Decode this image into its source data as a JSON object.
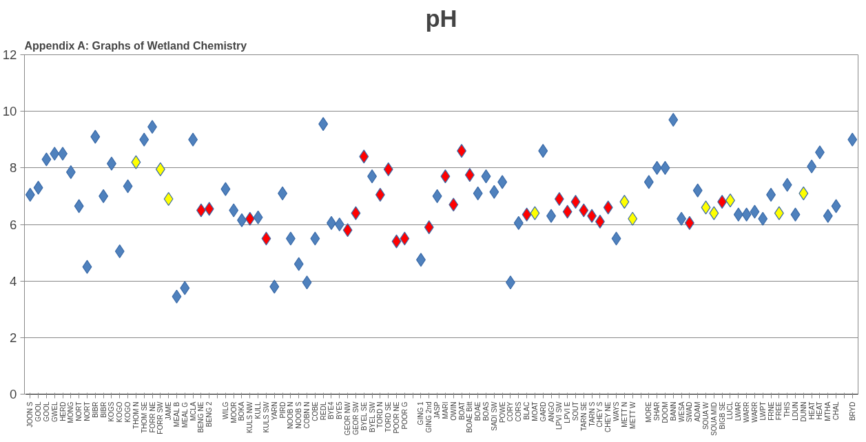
{
  "chart_data": {
    "type": "scatter",
    "title": "pH",
    "annotations": [
      "Appendix A: Graphs of Wetland Chemistry"
    ],
    "categories": [
      "JOON S",
      "GOOL",
      "GOOL",
      "GWEL",
      "HERD",
      "MONG",
      "NORT",
      "NORT",
      "BIBR",
      "BIBR",
      "KOGS",
      "KOGO",
      "KOGO",
      "THOM N",
      "THOM SE",
      "FORR NE",
      "FORR SW",
      "JAME",
      "MEAL B",
      "MEAL G",
      "MCLA",
      "BENG NE",
      "BENG 2",
      null,
      "WILG",
      "MOOR",
      "BOKA",
      "KULS NW",
      "KULL",
      "KULS SW",
      "YARN",
      "PIRD",
      "NOOB N",
      "NOOB S",
      "COBN N",
      "COBE",
      "REDL",
      "BYE4",
      "BYE5",
      "GEOR NW",
      "GEOR SW",
      "BYEL SE",
      "BYEL SW",
      "TORD N",
      "TORD SE",
      "POOR NE",
      "POOR G",
      null,
      "GING 1",
      "GING 2nd",
      "JASP",
      "MARI",
      "OWIN",
      "BOAT",
      "BOAE Bitt",
      "BOAE",
      "BOAS",
      "SADI SW",
      "POWE",
      "CORY",
      "CORS",
      "BLAC",
      "MOAT",
      "GARD",
      "ANGO",
      "LPVI SW",
      "LPVI E",
      "SOUT",
      "TARN SE",
      "TARN S",
      "CHEY S",
      "CHEY NE",
      "WAYS",
      "METT N",
      "METT W",
      null,
      "MORE",
      "SHAR",
      "DOOM",
      "BANN",
      "WESA",
      "SWAD",
      "ADAM",
      "SOUA W",
      "SOUA MID",
      "BIGB SE",
      "LUCL",
      "LWAR",
      "WARR",
      "WARR",
      "LWPT",
      "FRNE",
      "FREE",
      "THIS",
      "LDUN",
      "DUNN",
      "HEAT",
      "HEAT",
      "MTHA",
      "CHAL",
      null,
      "BRYD"
    ],
    "values": [
      7.05,
      7.3,
      8.3,
      8.5,
      8.5,
      7.85,
      6.65,
      4.5,
      9.1,
      7.0,
      8.15,
      5.05,
      7.35,
      8.2,
      9.0,
      9.45,
      7.95,
      6.9,
      3.45,
      3.75,
      9.0,
      6.5,
      6.55,
      null,
      7.25,
      6.5,
      6.15,
      6.2,
      6.25,
      5.5,
      3.8,
      7.1,
      5.5,
      4.6,
      3.95,
      5.5,
      9.55,
      6.05,
      6.0,
      5.8,
      6.4,
      8.4,
      7.7,
      7.05,
      7.95,
      5.4,
      5.5,
      null,
      4.75,
      5.9,
      7.0,
      7.7,
      6.7,
      8.6,
      7.75,
      7.1,
      7.7,
      7.15,
      7.5,
      3.95,
      6.05,
      6.35,
      6.4,
      8.6,
      6.3,
      6.9,
      6.45,
      6.8,
      6.5,
      6.3,
      6.1,
      6.6,
      5.5,
      6.8,
      6.2,
      null,
      7.5,
      8.0,
      8.0,
      9.7,
      6.2,
      6.05,
      7.2,
      6.6,
      6.4,
      6.8,
      6.85,
      6.35,
      6.35,
      6.45,
      6.2,
      7.05,
      6.4,
      7.4,
      6.35,
      7.1,
      8.05,
      8.55,
      6.3,
      6.65,
      null,
      9.0
    ],
    "colors": [
      "#4f81bd",
      "#4f81bd",
      "#4f81bd",
      "#4f81bd",
      "#4f81bd",
      "#4f81bd",
      "#4f81bd",
      "#4f81bd",
      "#4f81bd",
      "#4f81bd",
      "#4f81bd",
      "#4f81bd",
      "#4f81bd",
      "#ffff00",
      "#4f81bd",
      "#4f81bd",
      "#ffff00",
      "#ffff00",
      "#4f81bd",
      "#4f81bd",
      "#4f81bd",
      "#ff0000",
      "#ff0000",
      null,
      "#4f81bd",
      "#4f81bd",
      "#4f81bd",
      "#ff0000",
      "#4f81bd",
      "#ff0000",
      "#4f81bd",
      "#4f81bd",
      "#4f81bd",
      "#4f81bd",
      "#4f81bd",
      "#4f81bd",
      "#4f81bd",
      "#4f81bd",
      "#4f81bd",
      "#ff0000",
      "#ff0000",
      "#ff0000",
      "#4f81bd",
      "#ff0000",
      "#ff0000",
      "#ff0000",
      "#ff0000",
      null,
      "#4f81bd",
      "#ff0000",
      "#4f81bd",
      "#ff0000",
      "#ff0000",
      "#ff0000",
      "#ff0000",
      "#4f81bd",
      "#4f81bd",
      "#4f81bd",
      "#4f81bd",
      "#4f81bd",
      "#4f81bd",
      "#ff0000",
      "#ffff00",
      "#4f81bd",
      "#4f81bd",
      "#ff0000",
      "#ff0000",
      "#ff0000",
      "#ff0000",
      "#ff0000",
      "#ff0000",
      "#ff0000",
      "#4f81bd",
      "#ffff00",
      "#ffff00",
      null,
      "#4f81bd",
      "#4f81bd",
      "#4f81bd",
      "#4f81bd",
      "#4f81bd",
      "#ff0000",
      "#4f81bd",
      "#ffff00",
      "#ffff00",
      "#ff0000",
      "#ffff00",
      "#4f81bd",
      "#4f81bd",
      "#4f81bd",
      "#4f81bd",
      "#4f81bd",
      "#ffff00",
      "#4f81bd",
      "#4f81bd",
      "#ffff00",
      "#4f81bd",
      "#4f81bd",
      "#4f81bd",
      "#4f81bd",
      null,
      "#4f81bd"
    ],
    "marker": "diamond",
    "ylim": [
      0,
      12
    ],
    "yticks": [
      0,
      2,
      4,
      6,
      8,
      10,
      12
    ],
    "grid": "y"
  }
}
